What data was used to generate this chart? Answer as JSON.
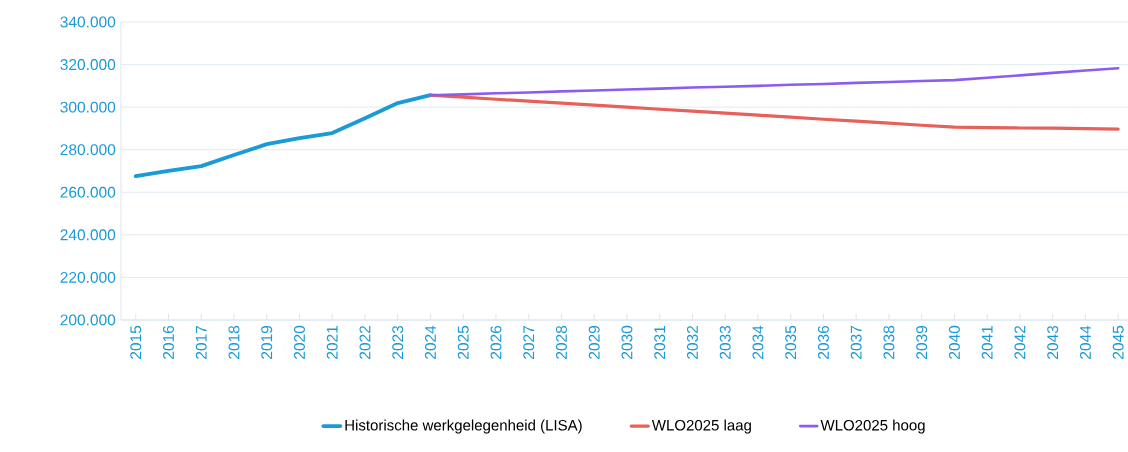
{
  "chart_data": {
    "type": "line",
    "categories": [
      "2015",
      "2016",
      "2017",
      "2018",
      "2019",
      "2020",
      "2021",
      "2022",
      "2023",
      "2024",
      "2025",
      "2026",
      "2027",
      "2028",
      "2029",
      "2030",
      "2031",
      "2032",
      "2033",
      "2034",
      "2035",
      "2036",
      "2037",
      "2038",
      "2039",
      "2040",
      "2041",
      "2042",
      "2043",
      "2044",
      "2045"
    ],
    "series": [
      {
        "name": "Historische werkgelegenheid (LISA)",
        "color": "#1a9ad6",
        "values": [
          267600,
          270000,
          272300,
          277500,
          282600,
          285400,
          287800,
          294800,
          301900,
          305600,
          null,
          null,
          null,
          null,
          null,
          null,
          null,
          null,
          null,
          null,
          null,
          null,
          null,
          null,
          null,
          null,
          null,
          null,
          null,
          null,
          null
        ]
      },
      {
        "name": "WLO2025 laag",
        "color": "#e8605a",
        "values": [
          null,
          null,
          null,
          null,
          null,
          null,
          null,
          null,
          null,
          305600,
          304700,
          303700,
          302800,
          301900,
          300900,
          300000,
          299000,
          298100,
          297200,
          296200,
          295300,
          294300,
          293400,
          292500,
          291500,
          290600,
          290400,
          290200,
          290100,
          289900,
          289700
        ]
      },
      {
        "name": "WLO2025 hoog",
        "color": "#8a5cf0",
        "values": [
          null,
          null,
          null,
          null,
          null,
          null,
          null,
          null,
          null,
          305600,
          306000,
          306500,
          306900,
          307400,
          307800,
          308300,
          308700,
          309200,
          309600,
          310000,
          310500,
          310900,
          311400,
          311800,
          312300,
          312700,
          313800,
          314900,
          316100,
          317200,
          318300
        ]
      }
    ],
    "ylim": [
      200000,
      340000
    ],
    "yticks": [
      {
        "value": 200000,
        "label": "200.000"
      },
      {
        "value": 220000,
        "label": "220.000"
      },
      {
        "value": 240000,
        "label": "240.000"
      },
      {
        "value": 260000,
        "label": "260.000"
      },
      {
        "value": 280000,
        "label": "280.000"
      },
      {
        "value": 300000,
        "label": "300.000"
      },
      {
        "value": 320000,
        "label": "320.000"
      },
      {
        "value": 340000,
        "label": "340.000"
      }
    ],
    "grid": "y",
    "legend": "bottom",
    "marker": "none",
    "line_style": "solid"
  }
}
